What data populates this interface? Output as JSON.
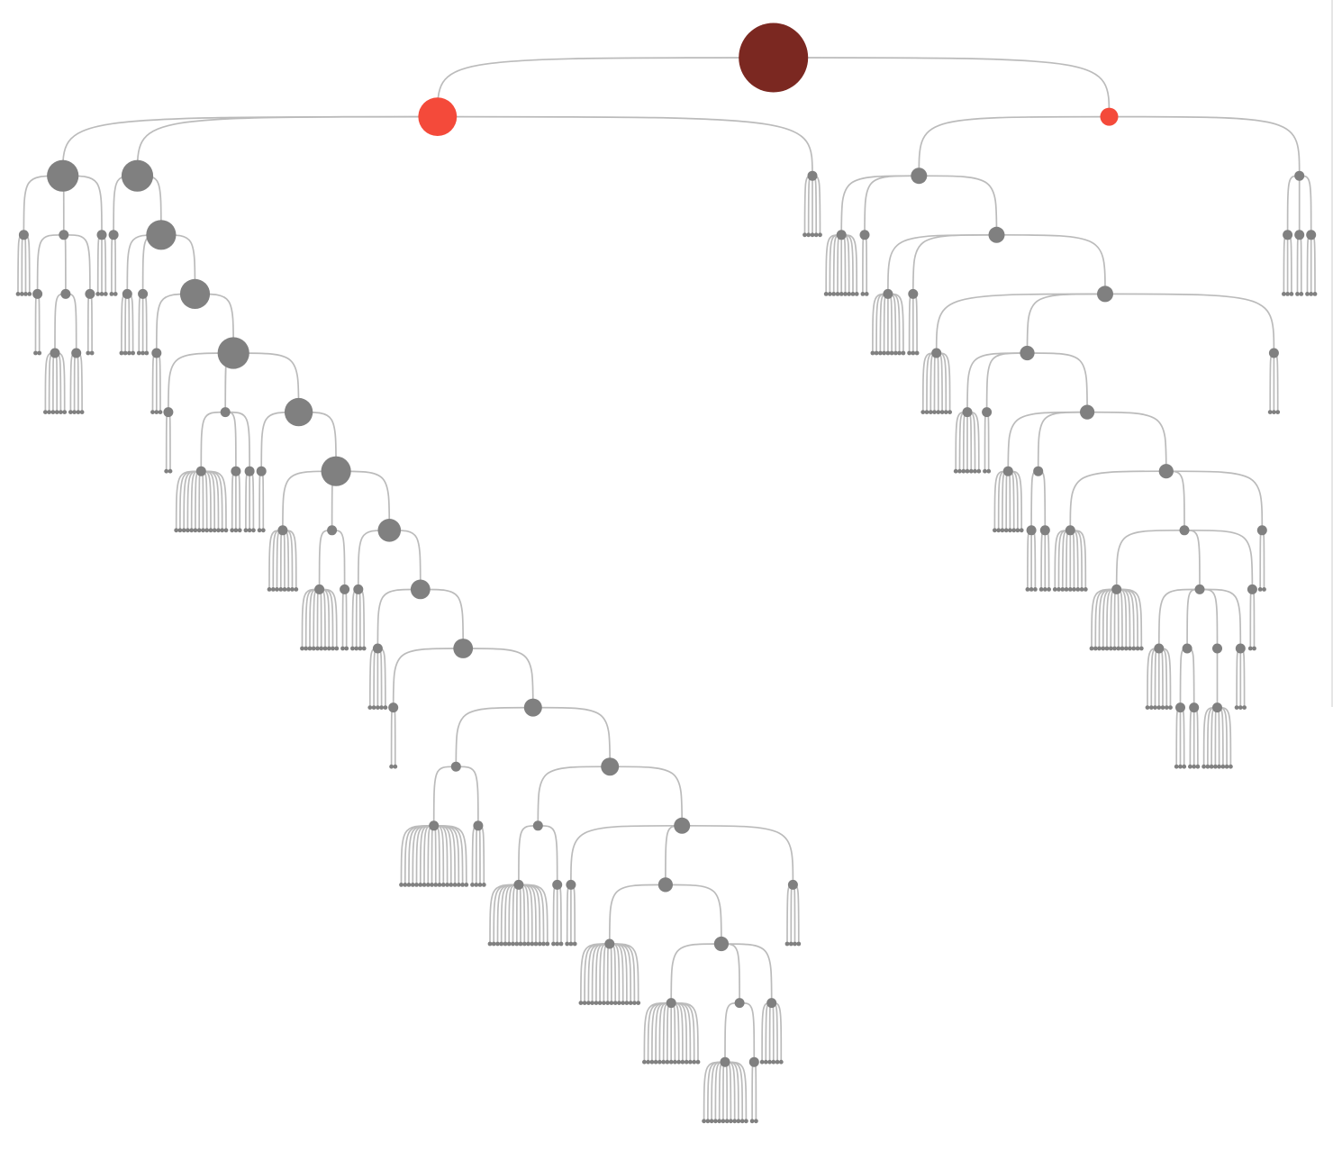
{
  "colors": {
    "background": "#ffffff",
    "link": "#bbbbbb",
    "node_default": "#808080",
    "node_root": "#7b2821",
    "node_highlight": "#f44a3a"
  },
  "tree": {
    "label": "",
    "weight": 40,
    "state": "root",
    "children": [
      {
        "weight": 22,
        "state": "highlight",
        "children": [
          {
            "weight": 18,
            "children": [
              {
                "leaves": 4
              },
              {
                "children": [
                  {
                    "leaves": 2
                  },
                  {
                    "children": [
                      {
                        "leaves": 6
                      },
                      {
                        "leaves": 4
                      }
                    ]
                  },
                  {
                    "leaves": 2
                  }
                ]
              },
              {
                "leaves": 3
              }
            ]
          },
          {
            "weight": 18,
            "children": [
              {
                "leaves": 2
              },
              {
                "weight": 17,
                "children": [
                  {
                    "leaves": 4
                  },
                  {
                    "leaves": 3
                  },
                  {
                    "weight": 17,
                    "children": [
                      {
                        "leaves": 3
                      },
                      {
                        "weight": 18,
                        "children": [
                          {
                            "leaves": 2
                          },
                          {
                            "children": [
                              {
                                "leaves": 14
                              },
                              {
                                "leaves": 3
                              },
                              {
                                "leaves": 3
                              }
                            ]
                          },
                          {
                            "weight": 16,
                            "children": [
                              {
                                "leaves": 2
                              },
                              {
                                "weight": 17,
                                "children": [
                                  {
                                    "leaves": 8
                                  },
                                  {
                                    "children": [
                                      {
                                        "leaves": 10
                                      },
                                      {
                                        "leaves": 2
                                      }
                                    ]
                                  },
                                  {
                                    "weight": 13,
                                    "children": [
                                      {
                                        "leaves": 4
                                      },
                                      {
                                        "weight": 11,
                                        "children": [
                                          {
                                            "leaves": 5
                                          },
                                          {
                                            "weight": 11,
                                            "children": [
                                              {
                                                "leaves": 2
                                              },
                                              {
                                                "weight": 10,
                                                "children": [
                                                  {
                                                    "children": [
                                                      {
                                                        "leaves": 18
                                                      },
                                                      {
                                                        "leaves": 4
                                                      }
                                                    ]
                                                  },
                                                  {
                                                    "weight": 10,
                                                    "children": [
                                                      {
                                                        "children": [
                                                          {
                                                            "leaves": 16
                                                          },
                                                          {
                                                            "leaves": 3
                                                          }
                                                        ]
                                                      },
                                                      {
                                                        "weight": 9,
                                                        "children": [
                                                          {
                                                            "leaves": 3
                                                          },
                                                          {
                                                            "weight": 8,
                                                            "children": [
                                                              {
                                                                "leaves": 16
                                                              },
                                                              {
                                                                "weight": 8,
                                                                "children": [
                                                                  {
                                                                    "leaves": 15
                                                                  },
                                                                  {
                                                                    "children": [
                                                                      {
                                                                        "leaves": 12
                                                                      },
                                                                      {
                                                                        "leaves": 2
                                                                      }
                                                                    ]
                                                                  },
                                                                  {
                                                                    "leaves": 6
                                                                  }
                                                                ]
                                                              }
                                                            ]
                                                          },
                                                          {
                                                            "leaves": 4
                                                          }
                                                        ]
                                                      }
                                                    ]
                                                  }
                                                ]
                                              }
                                            ]
                                          }
                                        ]
                                      }
                                    ]
                                  }
                                ]
                              }
                            ]
                          }
                        ]
                      }
                    ]
                  }
                ]
              }
            ]
          },
          {
            "leaves": 5
          }
        ]
      },
      {
        "weight": 10,
        "state": "highlight",
        "children": [
          {
            "weight": 9,
            "children": [
              {
                "leaves": 9
              },
              {
                "leaves": 2
              },
              {
                "weight": 9,
                "children": [
                  {
                    "leaves": 9
                  },
                  {
                    "leaves": 3
                  },
                  {
                    "weight": 9,
                    "children": [
                      {
                        "leaves": 8
                      },
                      {
                        "weight": 8,
                        "children": [
                          {
                            "leaves": 7
                          },
                          {
                            "leaves": 2
                          },
                          {
                            "weight": 8,
                            "children": [
                              {
                                "leaves": 8
                              },
                              {
                                "children": [
                                  {
                                    "leaves": 3
                                  },
                                  {
                                    "leaves": 3
                                  }
                                ]
                              },
                              {
                                "weight": 8,
                                "children": [
                                  {
                                    "leaves": 9
                                  },
                                  {
                                    "children": [
                                      {
                                        "leaves": 14
                                      },
                                      {
                                        "children": [
                                          {
                                            "leaves": 7
                                          },
                                          {
                                            "children": [
                                              {
                                                "leaves": 3
                                              },
                                              {
                                                "leaves": 3
                                              }
                                            ]
                                          },
                                          {
                                            "children": [
                                              {
                                                "leaves": 8
                                              }
                                            ]
                                          },
                                          {
                                            "leaves": 3
                                          }
                                        ]
                                      },
                                      {
                                        "leaves": 2
                                      }
                                    ]
                                  },
                                  {
                                    "leaves": 2
                                  }
                                ]
                              }
                            ]
                          }
                        ]
                      },
                      {
                        "leaves": 3
                      }
                    ]
                  }
                ]
              }
            ]
          },
          {
            "children": [
              {
                "leaves": 3
              },
              {
                "leaves": 2
              },
              {
                "leaves": 3
              }
            ]
          }
        ]
      }
    ]
  }
}
